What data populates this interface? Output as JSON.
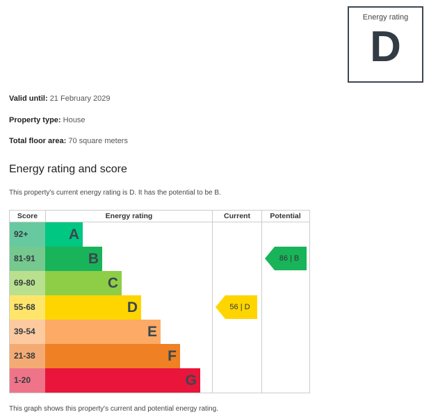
{
  "badge": {
    "label": "Energy rating",
    "value": "D"
  },
  "info": [
    {
      "label": "Valid until:",
      "value": "21 February 2029"
    },
    {
      "label": "Property type:",
      "value": "House"
    },
    {
      "label": "Total floor area:",
      "value": "70 square meters"
    }
  ],
  "heading": "Energy rating and score",
  "summary": "This property's current energy rating is D. It has the potential to be B.",
  "table": {
    "headers": [
      "Score",
      "Energy rating",
      "Current",
      "Potential"
    ],
    "rows": [
      {
        "score": "92+",
        "letter": "A",
        "color": "#00c781",
        "scolor": "#67c9a0"
      },
      {
        "score": "81-91",
        "letter": "B",
        "color": "#19b459",
        "scolor": "#75c98f"
      },
      {
        "score": "69-80",
        "letter": "C",
        "color": "#8dce46",
        "scolor": "#b9e08e"
      },
      {
        "score": "55-68",
        "letter": "D",
        "color": "#ffd500",
        "scolor": "#ffe66b"
      },
      {
        "score": "39-54",
        "letter": "E",
        "color": "#fcaa65",
        "scolor": "#fdcaa0"
      },
      {
        "score": "21-38",
        "letter": "F",
        "color": "#ef8023",
        "scolor": "#f4ab73"
      },
      {
        "score": "1-20",
        "letter": "G",
        "color": "#e9153b",
        "scolor": "#ef7489"
      }
    ],
    "current": {
      "label": "56 | D",
      "score": 56,
      "band": "D"
    },
    "potential": {
      "label": "86 | B",
      "score": 86,
      "band": "B"
    }
  },
  "footer": "This graph shows this property's current and potential energy rating."
}
